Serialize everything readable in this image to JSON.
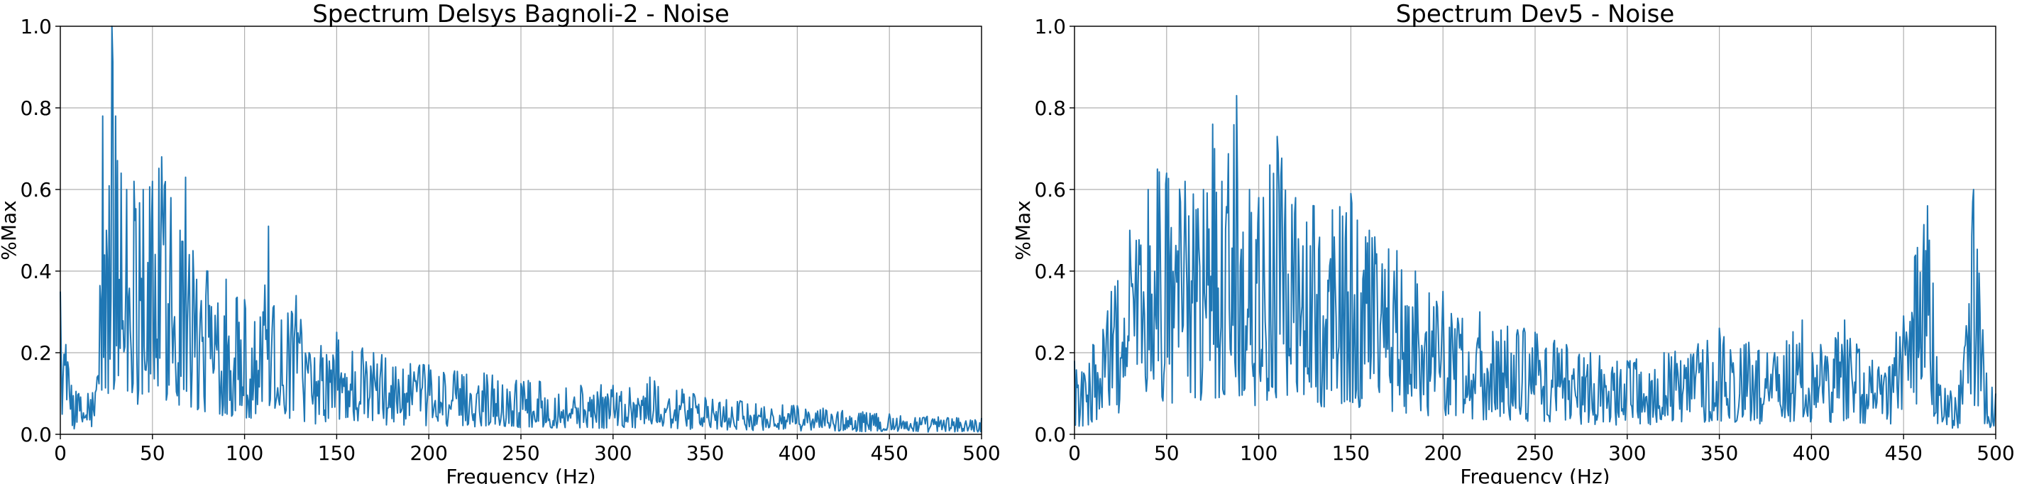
{
  "chart_data": [
    {
      "type": "line",
      "title": "Spectrum Delsys Bagnoli-2 - Noise",
      "xlabel": "Frequency (Hz)",
      "ylabel": "%Max",
      "xlim": [
        0,
        500
      ],
      "ylim": [
        0,
        1.0
      ],
      "xticks": [
        "0",
        "50",
        "100",
        "150",
        "200",
        "250",
        "300",
        "350",
        "400",
        "450",
        "500"
      ],
      "yticks": [
        "0.0",
        "0.2",
        "0.4",
        "0.6",
        "0.8",
        "1.0"
      ],
      "grid": true,
      "color": "#1f77b4",
      "series": [
        {
          "x": [
            0,
            3,
            6,
            10,
            15,
            20,
            23,
            25,
            28,
            30,
            33,
            36,
            40,
            45,
            50,
            55,
            60,
            65,
            68,
            72,
            80,
            90,
            100,
            110,
            113,
            120,
            128,
            135,
            150,
            170,
            200,
            230,
            260,
            300,
            320,
            350,
            400,
            450,
            500
          ],
          "y": [
            0.35,
            0.22,
            0.12,
            0.1,
            0.1,
            0.14,
            0.78,
            0.5,
            1.0,
            0.78,
            0.64,
            0.6,
            0.62,
            0.6,
            0.62,
            0.68,
            0.58,
            0.5,
            0.63,
            0.45,
            0.4,
            0.38,
            0.33,
            0.3,
            0.51,
            0.28,
            0.34,
            0.2,
            0.25,
            0.2,
            0.17,
            0.15,
            0.13,
            0.12,
            0.14,
            0.09,
            0.07,
            0.05,
            0.04
          ]
        }
      ]
    },
    {
      "type": "line",
      "title": "Spectrum Dev5 - Noise",
      "xlabel": "Frequency (Hz)",
      "ylabel": "%Max",
      "xlim": [
        0,
        500
      ],
      "ylim": [
        0,
        1.0
      ],
      "xticks": [
        "0",
        "50",
        "100",
        "150",
        "200",
        "250",
        "300",
        "350",
        "400",
        "450",
        "500"
      ],
      "yticks": [
        "0.0",
        "0.2",
        "0.4",
        "0.6",
        "0.8",
        "1.0"
      ],
      "grid": true,
      "color": "#1f77b4",
      "series": [
        {
          "x": [
            0,
            5,
            10,
            20,
            30,
            40,
            45,
            50,
            60,
            70,
            75,
            80,
            88,
            95,
            100,
            110,
            120,
            130,
            140,
            150,
            160,
            175,
            185,
            200,
            220,
            250,
            280,
            300,
            320,
            350,
            380,
            395,
            405,
            418,
            440,
            463,
            470,
            480,
            488,
            495,
            500
          ],
          "y": [
            0.18,
            0.15,
            0.22,
            0.35,
            0.5,
            0.6,
            0.65,
            0.64,
            0.62,
            0.6,
            0.76,
            0.62,
            0.83,
            0.6,
            0.58,
            0.73,
            0.58,
            0.56,
            0.55,
            0.59,
            0.5,
            0.45,
            0.4,
            0.35,
            0.3,
            0.25,
            0.2,
            0.18,
            0.2,
            0.26,
            0.2,
            0.28,
            0.22,
            0.28,
            0.15,
            0.56,
            0.12,
            0.12,
            0.6,
            0.15,
            0.1
          ]
        }
      ]
    }
  ]
}
